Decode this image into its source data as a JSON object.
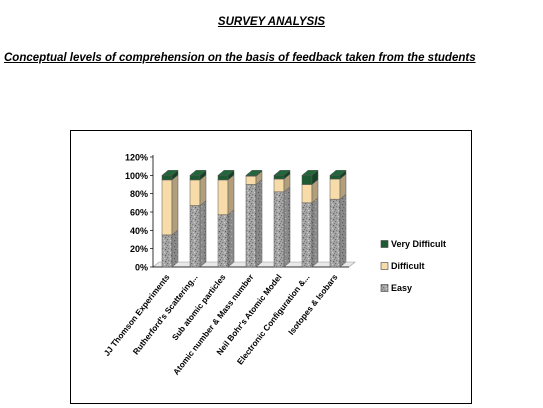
{
  "page": {
    "title": "SURVEY ANALYSIS",
    "subtitle": "Conceptual levels of comprehension on the basis of feedback taken from the students"
  },
  "colors": {
    "easy": "#a6a6a6",
    "difficult": "#f7dcaa",
    "very_difficult": "#1d5a33",
    "axis": "#000000"
  },
  "chart_data": {
    "type": "bar",
    "stacked": true,
    "three_d": true,
    "categories": [
      "JJ Thomson Experiments",
      "Rutherford's Scattering...",
      "Sub atomic particles",
      "Atomic number & Mass number",
      "Neil Bohr's Atomic Model",
      "Electronic Configuration &...",
      "Isotopes & Isobars"
    ],
    "series": [
      {
        "name": "Easy",
        "color": "#a6a6a6",
        "pattern": "speckled",
        "values": [
          35,
          67,
          57,
          90,
          82,
          70,
          74
        ]
      },
      {
        "name": "Difficult",
        "color": "#f7dcaa",
        "values": [
          60,
          28,
          38,
          9,
          14,
          20,
          22
        ]
      },
      {
        "name": "Very Difficult",
        "color": "#1d5a33",
        "values": [
          5,
          5,
          5,
          1,
          4,
          10,
          4
        ]
      }
    ],
    "ylim": [
      0,
      120
    ],
    "yticks": [
      "0%",
      "20%",
      "40%",
      "60%",
      "80%",
      "100%",
      "120%"
    ],
    "ytick_values": [
      0,
      20,
      40,
      60,
      80,
      100,
      120
    ],
    "legend_position": "right",
    "legend_order": [
      "Very Difficult",
      "Difficult",
      "Easy"
    ],
    "grid": false
  }
}
